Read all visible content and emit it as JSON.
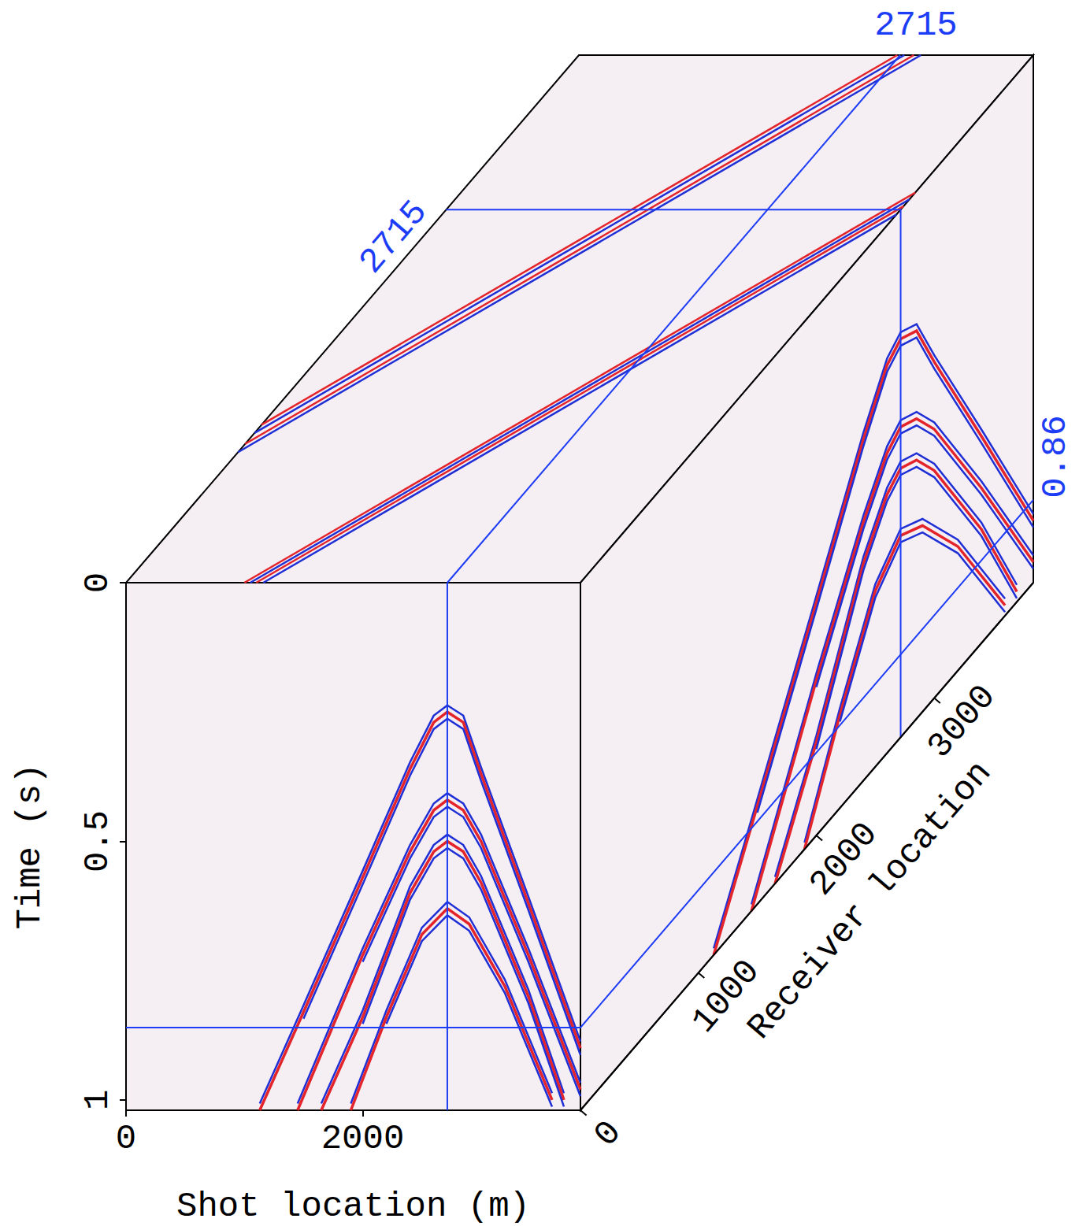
{
  "chart_data": {
    "type": "seismic_cube",
    "x_label": "Shot location (m)",
    "y_label": "Time (s)",
    "z_label": "Receiver location",
    "xlim": [
      0,
      3840
    ],
    "xticks": [
      0,
      2000
    ],
    "ylim": [
      0,
      1.02
    ],
    "yticks": [
      0,
      0.5,
      1
    ],
    "zlim": [
      0,
      3840
    ],
    "zticks": [
      0,
      1000,
      2000,
      3000
    ],
    "slices": {
      "shot": 2715,
      "receiver": 2715,
      "time": 0.86
    },
    "events": [
      [
        [
          1130,
          1.02
        ],
        [
          1500,
          0.83
        ],
        [
          2000,
          0.57
        ],
        [
          2400,
          0.36
        ],
        [
          2600,
          0.27
        ],
        [
          2715,
          0.25
        ],
        [
          2850,
          0.27
        ],
        [
          3000,
          0.37
        ],
        [
          3400,
          0.62
        ],
        [
          3840,
          0.9
        ]
      ],
      [
        [
          1450,
          1.02
        ],
        [
          2000,
          0.72
        ],
        [
          2400,
          0.52
        ],
        [
          2600,
          0.44
        ],
        [
          2715,
          0.42
        ],
        [
          2850,
          0.44
        ],
        [
          3000,
          0.5
        ],
        [
          3400,
          0.72
        ],
        [
          3840,
          0.98
        ]
      ],
      [
        [
          1650,
          1.02
        ],
        [
          2000,
          0.84
        ],
        [
          2400,
          0.6
        ],
        [
          2600,
          0.52
        ],
        [
          2715,
          0.5
        ],
        [
          2850,
          0.52
        ],
        [
          3000,
          0.58
        ],
        [
          3400,
          0.8
        ],
        [
          3700,
          1.0
        ]
      ],
      [
        [
          1900,
          1.02
        ],
        [
          2200,
          0.84
        ],
        [
          2500,
          0.68
        ],
        [
          2715,
          0.63
        ],
        [
          2900,
          0.66
        ],
        [
          3200,
          0.78
        ],
        [
          3600,
          1.0
        ]
      ]
    ],
    "time_slice_offsets": [
      -1150,
      -1090,
      -1010,
      -950,
      1000,
      1050,
      1100,
      1160
    ]
  }
}
